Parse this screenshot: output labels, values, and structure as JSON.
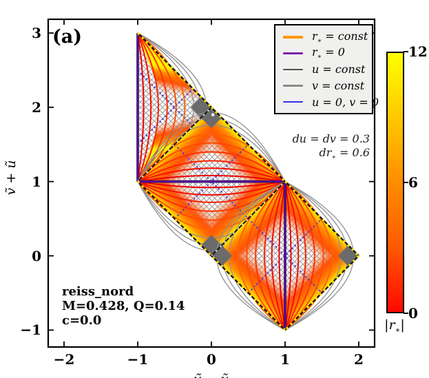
{
  "figure": {
    "panel_label": "(a)"
  },
  "axes": {
    "xlabel": "ṽ − ũ",
    "ylabel": "ṽ + ũ"
  },
  "annotations": {
    "resolution_line1": "du = dv = 0.3",
    "resolution_line2": "dr_* = 0.6",
    "model_line1": "reiss_nord",
    "model_line2": "M=0.428, Q=0.14",
    "model_line3": "c=0.0"
  },
  "legend": {
    "items": [
      {
        "label": "r_* = const",
        "color": "#ff9800",
        "lw": 3.5
      },
      {
        "label": "r_* = 0",
        "color": "#7a22aa",
        "lw": 3
      },
      {
        "label": "u = const",
        "color": "#4f4f4f",
        "lw": 1.3
      },
      {
        "label": "v = const",
        "color": "#8a8a8a",
        "lw": 2.6
      },
      {
        "label": "u = 0, v = 0",
        "color": "#3030f0",
        "lw": 2.6
      }
    ]
  },
  "colorbar": {
    "label": "|r_*|",
    "min": 0,
    "max": 12,
    "ticks": [
      0,
      6,
      12
    ],
    "gradient_bottom_to_top": [
      "#ff0800",
      "#ff5900",
      "#ff8d00",
      "#ffc800",
      "#ffff00"
    ]
  },
  "chart_data": {
    "type": "line",
    "subtype": "conformal-penrose-block-diagram",
    "title": "",
    "xlabel": "ṽ − ũ",
    "ylabel": "ṽ + ũ",
    "xlim": [
      -2.215,
      2.215
    ],
    "ylim": [
      -1.228,
      3.185
    ],
    "xticks": [
      -2,
      -1,
      0,
      1,
      2
    ],
    "yticks": [
      -1,
      0,
      1,
      2,
      3
    ],
    "grid": false,
    "legend_position": "upper right",
    "red_arc_bulges": [
      0.08,
      0.18,
      0.28,
      0.4,
      0.52,
      0.64
    ],
    "gray_arc_bulges": [
      0.76,
      0.85,
      0.93
    ],
    "colors": {
      "rstar_shades": [
        "#ee0000",
        "#f60e00",
        "#fc2000",
        "#ff3400",
        "#ff4b00",
        "#ff6300"
      ],
      "rstar0": "#5a0aa5",
      "u_const": "#555555",
      "v_const": "#8f8f8f",
      "u0v0": "#2d2df2",
      "hatch": "#a0a0a0",
      "wedge": "#6b6b6b",
      "boundary": "#141414",
      "boundary_dash": "#ffdf00",
      "rim": [
        "#ffee00",
        "#ffcd00",
        "#ff9400",
        "#ff6a00",
        "#ff4b00"
      ]
    },
    "blocks": [
      {
        "name": "upper-left-half-block",
        "polygon": [
          [
            -1,
            1
          ],
          [
            -1,
            3
          ],
          [
            0,
            2
          ]
        ],
        "center": [
          -0.62,
          2
        ],
        "rstar0_line": [
          [
            -1,
            1
          ],
          [
            -1,
            3
          ]
        ],
        "inner_edges": [
          [
            [
              0,
              2
            ],
            [
              -1,
              1
            ]
          ]
        ],
        "outer_edges": [
          [
            [
              -1,
              3
            ],
            [
              0,
              2
            ]
          ]
        ],
        "rim_edges": [
          [
            [
              -1,
              3
            ],
            [
              0,
              2
            ]
          ],
          [
            [
              0,
              2
            ],
            [
              -1,
              1
            ]
          ]
        ],
        "arcs": {
          "p0": [
            -1,
            1
          ],
          "p1": [
            -1,
            3
          ],
          "dir": [
            1,
            0
          ],
          "mirror": false
        },
        "blue_lines": [
          [
            [
              -1,
              1.5
            ],
            [
              -0.25,
              2.25
            ]
          ],
          [
            [
              -1,
              2.5
            ],
            [
              -0.25,
              1.75
            ]
          ]
        ],
        "gray_corner_wedges": [
          [
            0,
            2
          ]
        ]
      },
      {
        "name": "middle-block",
        "polygon": [
          [
            -1,
            1
          ],
          [
            0,
            2
          ],
          [
            1,
            1
          ],
          [
            0,
            0
          ]
        ],
        "center": [
          0,
          1
        ],
        "rstar0_line": [
          [
            -1,
            1
          ],
          [
            1,
            1
          ]
        ],
        "inner_edges": [
          [
            [
              -1,
              1
            ],
            [
              0,
              2
            ]
          ],
          [
            [
              0,
              0
            ],
            [
              1,
              1
            ]
          ]
        ],
        "outer_edges": [
          [
            [
              0,
              2
            ],
            [
              1,
              1
            ]
          ],
          [
            [
              -1,
              1
            ],
            [
              0,
              0
            ]
          ]
        ],
        "rim_edges": [
          [
            [
              -1,
              1
            ],
            [
              0,
              2
            ]
          ],
          [
            [
              0,
              2
            ],
            [
              1,
              1
            ]
          ],
          [
            [
              1,
              1
            ],
            [
              0,
              0
            ]
          ],
          [
            [
              0,
              0
            ],
            [
              -1,
              1
            ]
          ]
        ],
        "arcs": {
          "p0": [
            -1,
            1
          ],
          "p1": [
            1,
            1
          ],
          "dir": [
            0,
            1
          ],
          "mirror": true
        },
        "blue_lines": [
          [
            [
              -0.5,
              0.5
            ],
            [
              0.5,
              1.5
            ]
          ],
          [
            [
              -0.5,
              1.5
            ],
            [
              0.5,
              0.5
            ]
          ]
        ],
        "gray_corner_wedges": [
          [
            0,
            2
          ],
          [
            0,
            0
          ]
        ],
        "marker": [
          0.02,
          1.9
        ]
      },
      {
        "name": "lower-right-block",
        "polygon": [
          [
            0,
            0
          ],
          [
            1,
            1
          ],
          [
            2,
            0
          ],
          [
            1,
            -1
          ]
        ],
        "center": [
          1,
          0
        ],
        "rstar0_line": [
          [
            1,
            -1
          ],
          [
            1,
            1
          ]
        ],
        "inner_edges": [
          [
            [
              0,
              0
            ],
            [
              1,
              1
            ]
          ]
        ],
        "outer_edges": [
          [
            [
              1,
              1
            ],
            [
              2,
              0
            ]
          ],
          [
            [
              2,
              0
            ],
            [
              1,
              -1
            ]
          ],
          [
            [
              1,
              -1
            ],
            [
              0,
              0
            ]
          ]
        ],
        "rim_edges": [
          [
            [
              0,
              0
            ],
            [
              1,
              1
            ]
          ],
          [
            [
              1,
              1
            ],
            [
              2,
              0
            ]
          ],
          [
            [
              2,
              0
            ],
            [
              1,
              -1
            ]
          ],
          [
            [
              1,
              -1
            ],
            [
              0,
              0
            ]
          ]
        ],
        "arcs": {
          "p0": [
            1,
            -1
          ],
          "p1": [
            1,
            1
          ],
          "dir": [
            1,
            0
          ],
          "mirror": true
        },
        "blue_lines": [
          [
            [
              0.5,
              -0.5
            ],
            [
              1.5,
              0.5
            ]
          ],
          [
            [
              0.5,
              0.5
            ],
            [
              1.5,
              -0.5
            ]
          ]
        ],
        "gray_corner_wedges": [
          [
            0,
            0
          ],
          [
            2,
            0
          ]
        ]
      }
    ]
  }
}
